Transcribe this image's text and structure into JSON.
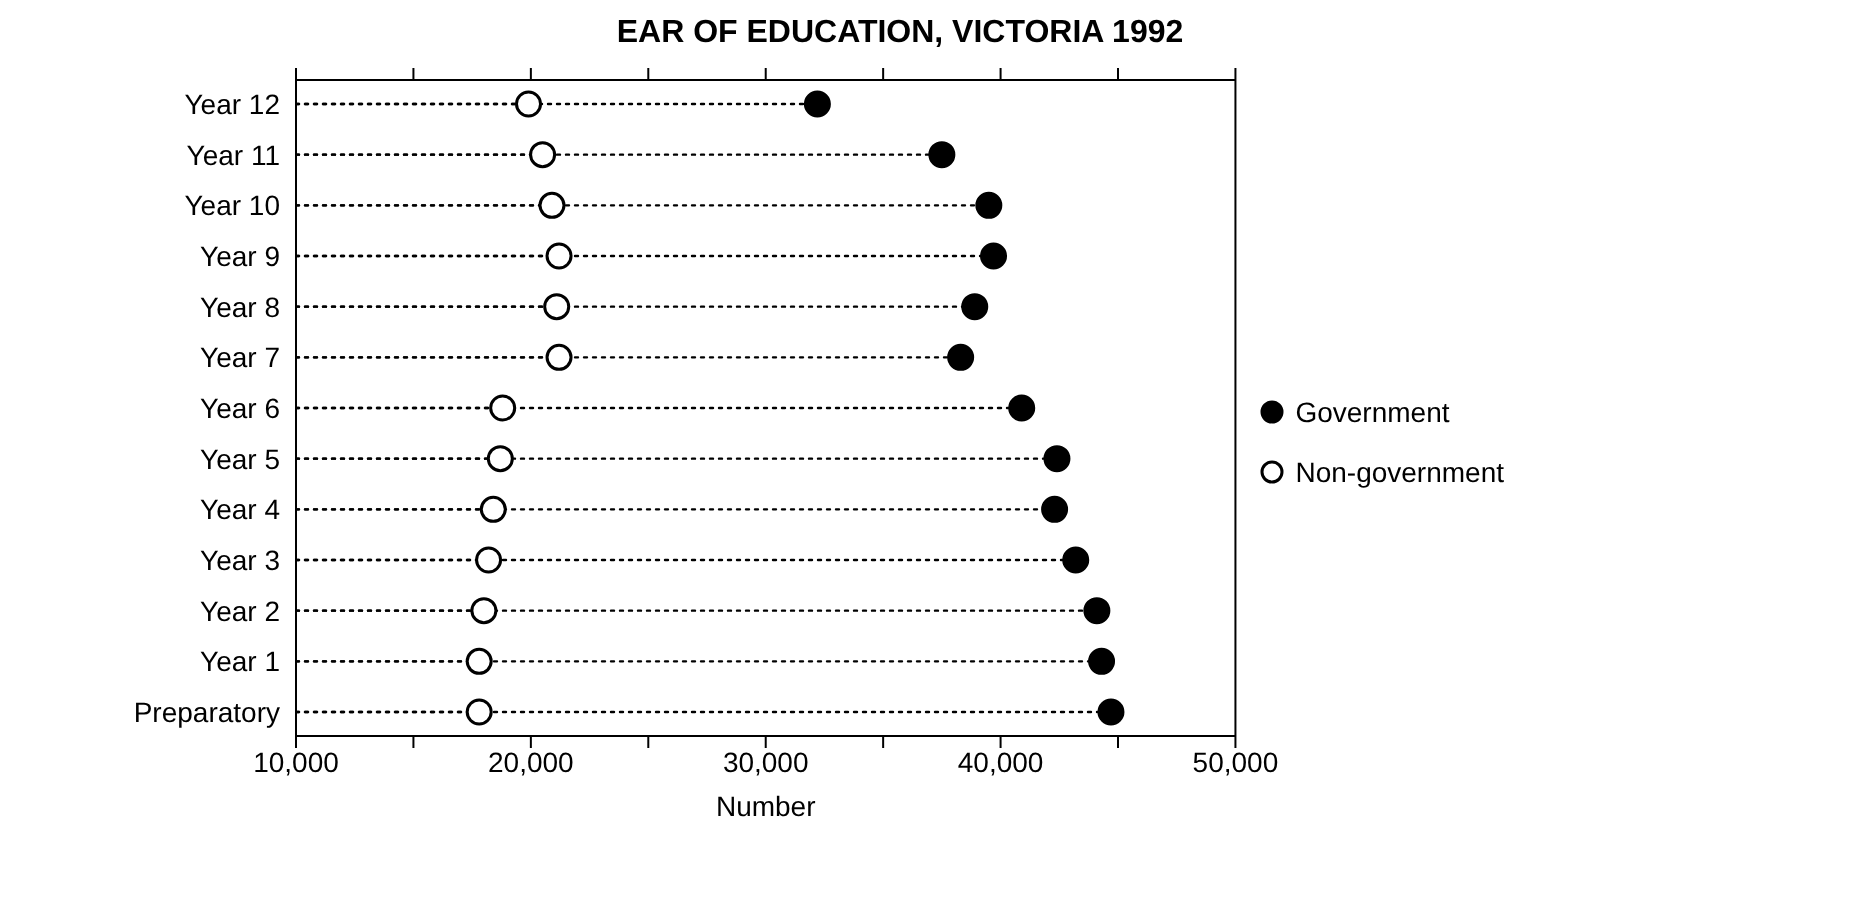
{
  "chart_data": {
    "type": "lollipop",
    "orientation": "horizontal",
    "title": "EAR OF EDUCATION, VICTORIA 1992",
    "xlabel": "Number",
    "categories": [
      "Year 12",
      "Year 11",
      "Year 10",
      "Year 9",
      "Year 8",
      "Year 7",
      "Year 6",
      "Year 5",
      "Year 4",
      "Year 3",
      "Year 2",
      "Year 1",
      "Preparatory"
    ],
    "series": [
      {
        "name": "Government",
        "color": "#000000",
        "values": [
          32200,
          37500,
          39500,
          39700,
          38900,
          38300,
          40900,
          42400,
          42300,
          43200,
          44100,
          44300,
          44700
        ]
      },
      {
        "name": "Non-government",
        "color": "#ffffff",
        "values": [
          19900,
          20500,
          20900,
          21200,
          21100,
          21200,
          18800,
          18700,
          18400,
          18200,
          18000,
          17800,
          17800
        ]
      }
    ],
    "xlim": [
      10000,
      50000
    ],
    "xticks": [
      {
        "value": 10000,
        "label": "10,000"
      },
      {
        "value": 15000,
        "label": null
      },
      {
        "value": 20000,
        "label": "20,000"
      },
      {
        "value": 25000,
        "label": null
      },
      {
        "value": 30000,
        "label": "30,000"
      },
      {
        "value": 35000,
        "label": null
      },
      {
        "value": 40000,
        "label": "40,000"
      },
      {
        "value": 45000,
        "label": null
      },
      {
        "value": 50000,
        "label": "50,000"
      }
    ],
    "grid": false,
    "legend": "right",
    "marker": "circle",
    "line_style": "dotted"
  }
}
